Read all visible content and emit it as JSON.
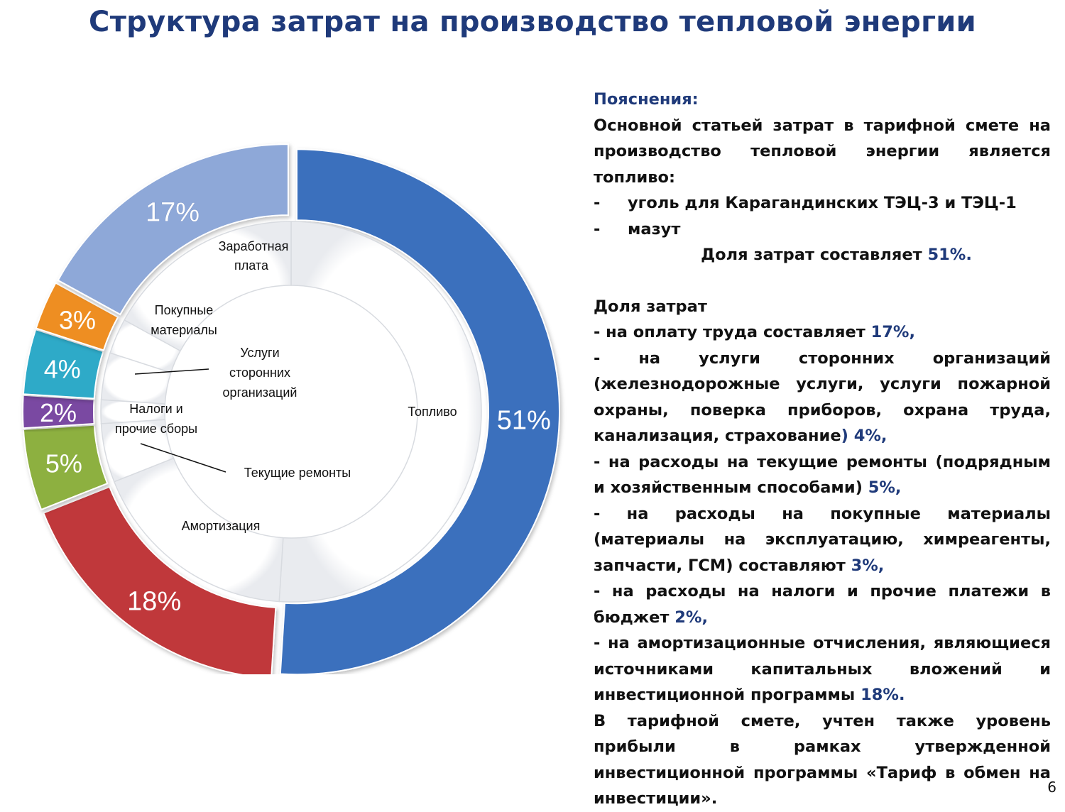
{
  "title": "Структура затрат на производство тепловой энергии",
  "chart_data": {
    "type": "pie",
    "title": "",
    "series": [
      {
        "category": "Топливо",
        "value": 51,
        "label": "51%",
        "color": "#3b6fbd"
      },
      {
        "category": "Амортизация",
        "value": 18,
        "label": "18%",
        "color": "#c0393b"
      },
      {
        "category": "Текущие ремонты",
        "value": 5,
        "label": "5%",
        "color": "#8db03f"
      },
      {
        "category": "Налоги и прочие сборы",
        "value": 2,
        "label": "2%",
        "color": "#7a4aa2"
      },
      {
        "category": "Услуги сторонних организаций",
        "value": 4,
        "label": "4%",
        "color": "#2eaac8"
      },
      {
        "category": "Покупные материалы",
        "value": 3,
        "label": "3%",
        "color": "#ee8e23"
      },
      {
        "category": "Заработная плата",
        "value": 17,
        "label": "17%",
        "color": "#8ea8d8"
      }
    ],
    "inner_labels": {
      "fuel": "Топливо",
      "depr": "Амортизация",
      "repairs": "Текущие ремонты",
      "taxes_1": "Налоги и",
      "taxes_2": "прочие сборы",
      "services_1": "Услуги",
      "services_2": "сторонних",
      "services_3": "организаций",
      "materials_1": "Покупные",
      "materials_2": "материалы",
      "salary_1": "Заработная",
      "salary_2": "плата"
    }
  },
  "notes": {
    "heading": "Пояснения:",
    "intro": "Основной статьей затрат в тарифной смете на производство тепловой энергии является топливо:",
    "dash": "-",
    "fuel_item_1": "уголь для Карагандинских ТЭЦ-3 и ТЭЦ-1",
    "fuel_item_2": "мазут",
    "fuel_share_text": "Доля затрат составляет ",
    "fuel_share_value": "51%.",
    "share_heading": "Доля затрат",
    "labor_text": "-  на оплату труда составляет ",
    "labor_value": "17%,",
    "services_text": "- на услуги сторонних организаций (железнодорожные услуги, услуги пожарной охраны, поверка приборов, охрана труда, канализация, страхование",
    "services_value": ") 4%,",
    "repairs_text": " - на расходы на текущие ремонты (подрядным и хозяйственным способами) ",
    "repairs_value": "5%,",
    "materials_text": " - на расходы на покупные материалы (материалы на эксплуатацию, химреагенты, запчасти, ГСМ) составляют ",
    "materials_value": "3%,",
    "taxes_text": "- на расходы на налоги и прочие платежи в бюджет ",
    "taxes_value": "2%,",
    "depr_text": " - на амортизационные отчисления, являющиеся источниками капитальных вложений и инвестиционной программы ",
    "depr_value": "18%.",
    "profit_text": "В тарифной смете, учтен также уровень прибыли в рамках утвержденной инвестиционной программы «Тариф в обмен на инвестиции»."
  },
  "page_number": "6"
}
